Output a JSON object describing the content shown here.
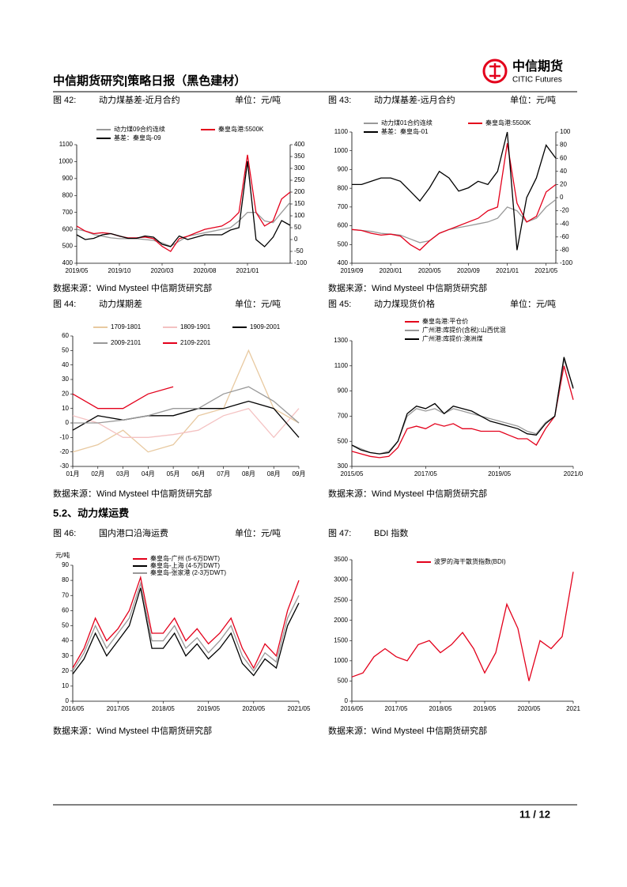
{
  "header": {
    "title": "中信期货研究|策略日报（黑色建材）",
    "logo_cn": "中信期货",
    "logo_en": "CITIC Futures"
  },
  "section": "5.2、动力煤运费",
  "footer": {
    "page": "11 / 12"
  },
  "chart_data": [
    {
      "type": "line",
      "figure": "图 42:",
      "title": "动力煤基差-近月合约",
      "unit": "单位：元/吨",
      "source": "数据来源：Wind Mysteel 中信期货研究部",
      "categories": [
        "2019/05",
        null,
        null,
        null,
        null,
        "2019/10",
        null,
        null,
        null,
        null,
        "2020/03",
        null,
        null,
        null,
        null,
        "2020/08",
        null,
        null,
        null,
        null,
        "2021/01",
        null,
        null,
        null,
        null,
        null
      ],
      "series": [
        {
          "name": "动力煤09合约连续",
          "color": "#999999",
          "values": [
            600,
            590,
            570,
            560,
            550,
            545,
            545,
            545,
            540,
            535,
            520,
            500,
            530,
            560,
            570,
            580,
            590,
            600,
            610,
            650,
            700,
            700,
            650,
            640,
            700,
            760
          ]
        },
        {
          "name": "秦皇岛港:5500K",
          "color": "#e3001b",
          "values": [
            620,
            590,
            575,
            580,
            575,
            560,
            550,
            550,
            555,
            545,
            500,
            470,
            545,
            560,
            580,
            600,
            610,
            620,
            650,
            700,
            1040,
            700,
            620,
            650,
            780,
            820
          ]
        },
        {
          "name": "基差：秦皇岛-09",
          "color": "#000000",
          "axis": "y2",
          "values": [
            20,
            0,
            5,
            20,
            25,
            15,
            5,
            5,
            15,
            10,
            -20,
            -30,
            15,
            0,
            10,
            20,
            20,
            20,
            40,
            50,
            330,
            0,
            -30,
            10,
            80,
            60
          ]
        }
      ],
      "ylim": [
        400,
        1100
      ],
      "yticks": [
        400,
        500,
        600,
        700,
        800,
        900,
        1000,
        1100
      ],
      "y2lim": [
        -100,
        400
      ],
      "y2ticks": [
        -100,
        -50,
        0,
        50,
        100,
        150,
        200,
        250,
        300,
        350,
        400
      ]
    },
    {
      "type": "line",
      "figure": "图 43:",
      "title": "动力煤基差-远月合约",
      "unit": "单位：元/吨",
      "source": "数据来源：Wind Mysteel 中信期货研究部",
      "categories": [
        "2019/09",
        null,
        null,
        null,
        "2020/01",
        null,
        null,
        null,
        "2020/05",
        null,
        null,
        null,
        "2020/09",
        null,
        null,
        null,
        "2021/01",
        null,
        null,
        null,
        "2021/05",
        null
      ],
      "series": [
        {
          "name": "动力煤01合约连续",
          "color": "#999999",
          "values": [
            580,
            575,
            570,
            560,
            555,
            550,
            530,
            510,
            520,
            560,
            580,
            590,
            600,
            610,
            620,
            640,
            700,
            680,
            620,
            640,
            700,
            740
          ]
        },
        {
          "name": "秦皇岛港:5500K",
          "color": "#e3001b",
          "values": [
            580,
            575,
            560,
            550,
            555,
            545,
            500,
            470,
            520,
            560,
            580,
            600,
            620,
            640,
            680,
            700,
            1040,
            720,
            620,
            650,
            780,
            820
          ]
        },
        {
          "name": "基差：秦皇岛-01",
          "color": "#000000",
          "axis": "y2",
          "values": [
            20,
            20,
            25,
            30,
            30,
            25,
            10,
            -5,
            15,
            40,
            30,
            10,
            15,
            25,
            20,
            40,
            100,
            -80,
            0,
            30,
            80,
            60
          ]
        }
      ],
      "ylim": [
        400,
        1100
      ],
      "yticks": [
        400,
        500,
        600,
        700,
        800,
        900,
        1000,
        1100
      ],
      "y2lim": [
        -100,
        100
      ],
      "y2ticks": [
        -100,
        -80,
        -60,
        -40,
        -20,
        0,
        20,
        40,
        60,
        80,
        100
      ]
    },
    {
      "type": "line",
      "figure": "图 44:",
      "title": "动力煤期差",
      "unit": "单位：元/吨",
      "source": "数据来源：Wind Mysteel 中信期货研究部",
      "categories": [
        "01月",
        "02月",
        "03月",
        "04月",
        "05月",
        "06月",
        "07月",
        "08月",
        "08月",
        "09月"
      ],
      "series": [
        {
          "name": "1709-1801",
          "color": "#e8c9a0",
          "values": [
            -20,
            -15,
            -5,
            -20,
            -15,
            5,
            10,
            50,
            10,
            0
          ]
        },
        {
          "name": "1809-1901",
          "color": "#f4c2c2",
          "values": [
            5,
            0,
            -10,
            -10,
            -8,
            -5,
            5,
            10,
            -10,
            10
          ]
        },
        {
          "name": "1909-2001",
          "color": "#000000",
          "values": [
            -5,
            5,
            2,
            5,
            5,
            10,
            10,
            15,
            10,
            -10
          ]
        },
        {
          "name": "2009-2101",
          "color": "#999999",
          "values": [
            0,
            0,
            2,
            5,
            10,
            10,
            20,
            25,
            15,
            0
          ]
        },
        {
          "name": "2109-2201",
          "color": "#e3001b",
          "values": [
            20,
            10,
            10,
            20,
            25,
            null,
            null,
            null,
            null,
            null
          ]
        }
      ],
      "ylim": [
        -30,
        60
      ],
      "yticks": [
        -30,
        -20,
        -10,
        0,
        10,
        20,
        30,
        40,
        50,
        60
      ]
    },
    {
      "type": "line",
      "figure": "图 45:",
      "title": "动力煤现货价格",
      "unit": "单位：元/吨",
      "source": "数据来源：Wind Mysteel 中信期货研究部",
      "categories": [
        "2015/05",
        null,
        null,
        null,
        null,
        null,
        null,
        null,
        "2017/05",
        null,
        null,
        null,
        null,
        null,
        null,
        null,
        "2019/05",
        null,
        null,
        null,
        null,
        null,
        null,
        null,
        "2021/0"
      ],
      "series": [
        {
          "name": "秦皇岛港:平仓价",
          "color": "#e3001b",
          "values": [
            420,
            400,
            380,
            370,
            380,
            450,
            600,
            620,
            600,
            640,
            620,
            640,
            600,
            600,
            580,
            580,
            580,
            550,
            520,
            520,
            470,
            600,
            700,
            1100,
            830
          ]
        },
        {
          "name": "广州港:库提价(含税):山西优混",
          "color": "#999999",
          "values": [
            470,
            440,
            410,
            400,
            420,
            500,
            700,
            760,
            740,
            760,
            720,
            760,
            740,
            720,
            700,
            680,
            660,
            640,
            620,
            580,
            560,
            650,
            700,
            1150,
            930
          ]
        },
        {
          "name": "广州港:库提价:澳洲煤",
          "color": "#000000",
          "values": [
            470,
            430,
            410,
            400,
            410,
            500,
            720,
            780,
            760,
            800,
            720,
            780,
            760,
            740,
            700,
            660,
            640,
            620,
            600,
            560,
            550,
            640,
            700,
            1170,
            920
          ]
        }
      ],
      "ylim": [
        300,
        1300
      ],
      "yticks": [
        300,
        500,
        700,
        900,
        1100,
        1300
      ]
    },
    {
      "type": "line",
      "figure": "图 46:",
      "title": "国内港口沿海运费",
      "unit": "单位：元/吨",
      "source": "数据来源：Wind Mysteel 中信期货研究部",
      "y_label": "元/吨",
      "categories": [
        "2016/05",
        null,
        null,
        null,
        "2017/05",
        null,
        null,
        null,
        "2018/05",
        null,
        null,
        null,
        "2019/05",
        null,
        null,
        null,
        "2020/05",
        null,
        null,
        null,
        "2021/05"
      ],
      "series": [
        {
          "name": "秦皇岛-广州 (5-6万DWT)",
          "color": "#e3001b",
          "values": [
            22,
            35,
            55,
            40,
            48,
            60,
            82,
            45,
            45,
            55,
            40,
            48,
            38,
            45,
            55,
            35,
            22,
            38,
            30,
            60,
            80
          ]
        },
        {
          "name": "秦皇岛-上海 (4-5万DWT)",
          "color": "#000000",
          "values": [
            18,
            28,
            45,
            30,
            40,
            50,
            75,
            35,
            35,
            45,
            30,
            38,
            28,
            35,
            45,
            25,
            17,
            28,
            22,
            50,
            65
          ]
        },
        {
          "name": "秦皇岛-张家港 (2-3万DWT)",
          "color": "#999999",
          "values": [
            20,
            32,
            50,
            35,
            45,
            55,
            78,
            40,
            40,
            50,
            35,
            42,
            32,
            40,
            50,
            30,
            20,
            32,
            26,
            55,
            70
          ]
        }
      ],
      "ylim": [
        0,
        90
      ],
      "yticks": [
        0,
        10,
        20,
        30,
        40,
        50,
        60,
        70,
        80,
        90
      ]
    },
    {
      "type": "line",
      "figure": "图 47:",
      "title": "BDI 指数",
      "source": "数据来源：Wind Mysteel 中信期货研究部",
      "categories": [
        "2016/05",
        null,
        null,
        null,
        "2017/05",
        null,
        null,
        null,
        "2018/05",
        null,
        null,
        null,
        "2019/05",
        null,
        null,
        null,
        "2020/05",
        null,
        null,
        null,
        "2021"
      ],
      "series": [
        {
          "name": "波罗的海干散货指数(BDI)",
          "color": "#e3001b",
          "values": [
            600,
            700,
            1100,
            1300,
            1100,
            1000,
            1400,
            1500,
            1200,
            1400,
            1700,
            1300,
            700,
            1200,
            2400,
            1800,
            500,
            1500,
            1300,
            1600,
            3200
          ]
        }
      ],
      "ylim": [
        0,
        3500
      ],
      "yticks": [
        0,
        500,
        1000,
        1500,
        2000,
        2500,
        3000,
        3500
      ]
    }
  ]
}
